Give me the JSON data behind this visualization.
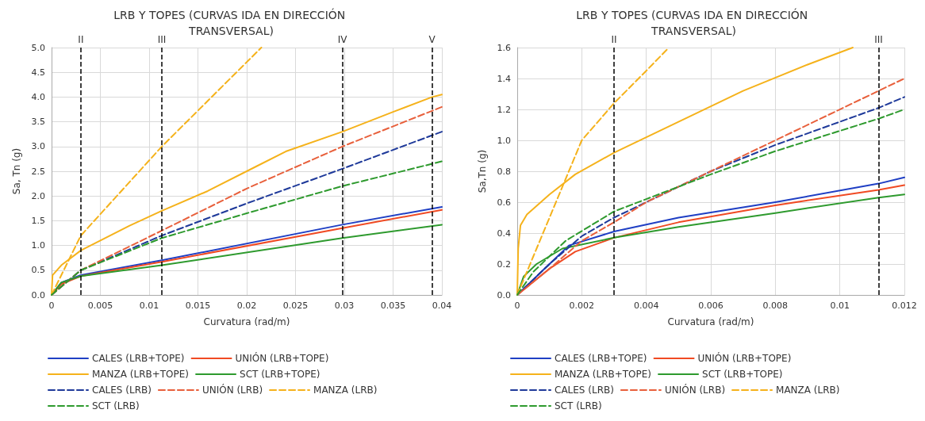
{
  "chart_data": [
    {
      "type": "line",
      "title": "LRB Y TOPES (CURVAS IDA EN DIRECCIÓN TRANSVERSAL)",
      "xlabel": "Curvatura (rad/m)",
      "ylabel": "Sa, Tn (g)",
      "xlim": [
        0,
        0.04
      ],
      "xticks": [
        0,
        0.005,
        0.01,
        0.015,
        0.02,
        0.025,
        0.03,
        0.035,
        0.04
      ],
      "ylim": [
        0,
        5
      ],
      "yticks": [
        {
          "value": 0,
          "label": "0.0"
        },
        {
          "value": 0.5,
          "label": "0.5"
        },
        {
          "value": 1,
          "label": "1.0"
        },
        {
          "value": 1.5,
          "label": "1.5"
        },
        {
          "value": 2,
          "label": "2.0"
        },
        {
          "value": 2.5,
          "label": "2.5"
        },
        {
          "value": 3,
          "label": "3.0"
        },
        {
          "value": 3.5,
          "label": "3.5"
        },
        {
          "value": 4,
          "label": "4.0"
        },
        {
          "value": 4.5,
          "label": "4.5"
        },
        {
          "value": 5,
          "label": "5.0"
        }
      ],
      "grid": true,
      "legend": "bottom",
      "marker": "none",
      "ref_lines": [
        {
          "axis": "x",
          "value": 0.003,
          "label": "II",
          "color": "#000000",
          "line_style": "dashed"
        },
        {
          "axis": "x",
          "value": 0.0113,
          "label": "III",
          "color": "#000000",
          "line_style": "dashed"
        },
        {
          "axis": "x",
          "value": 0.0298,
          "label": "IV",
          "color": "#000000",
          "line_style": "dashed"
        },
        {
          "axis": "x",
          "value": 0.039,
          "label": "V",
          "color": "#000000",
          "line_style": "dashed"
        }
      ],
      "series": [
        {
          "name": "CALES (LRB+TOPE)",
          "color": "#1f3fc4",
          "line_style": "solid",
          "x": [
            0,
            0.001,
            0.003,
            0.0113,
            0.0298,
            0.04
          ],
          "values": [
            0,
            0.25,
            0.4,
            0.7,
            1.42,
            1.78
          ]
        },
        {
          "name": "UNIÓN (LRB+TOPE)",
          "color": "#f04a23",
          "line_style": "solid",
          "x": [
            0,
            0.001,
            0.003,
            0.0113,
            0.0298,
            0.04
          ],
          "values": [
            0,
            0.22,
            0.38,
            0.67,
            1.35,
            1.72
          ]
        },
        {
          "name": "MANZA (LRB+TOPE)",
          "color": "#f5b21b",
          "line_style": "solid",
          "x": [
            0,
            0.0001,
            0.001,
            0.003,
            0.006,
            0.008,
            0.0113,
            0.016,
            0.021,
            0.024,
            0.0298,
            0.035,
            0.039,
            0.04
          ],
          "values": [
            0,
            0.4,
            0.6,
            0.9,
            1.2,
            1.4,
            1.7,
            2.1,
            2.6,
            2.9,
            3.3,
            3.7,
            4.0,
            4.05
          ]
        },
        {
          "name": "SCT (LRB+TOPE)",
          "color": "#2e9a2e",
          "line_style": "solid",
          "x": [
            0,
            0.001,
            0.003,
            0.0113,
            0.0298,
            0.04
          ],
          "values": [
            0,
            0.25,
            0.38,
            0.6,
            1.15,
            1.42
          ]
        },
        {
          "name": "CALES (LRB)",
          "color": "#1f3a9a",
          "line_style": "dashed",
          "x": [
            0,
            0.003,
            0.0113,
            0.02,
            0.0298,
            0.04
          ],
          "values": [
            0,
            0.5,
            1.2,
            1.85,
            2.55,
            3.3
          ]
        },
        {
          "name": "UNIÓN (LRB)",
          "color": "#e8603c",
          "line_style": "dashed",
          "x": [
            0,
            0.003,
            0.0113,
            0.02,
            0.0298,
            0.04
          ],
          "values": [
            0,
            0.5,
            1.3,
            2.15,
            3.0,
            3.8
          ]
        },
        {
          "name": "MANZA (LRB)",
          "color": "#f5b21b",
          "line_style": "dashed",
          "x": [
            0,
            0.003,
            0.0113,
            0.0215
          ],
          "values": [
            0,
            1.2,
            3.0,
            5.0
          ]
        },
        {
          "name": "SCT (LRB)",
          "color": "#2e9a2e",
          "line_style": "dashed",
          "x": [
            0,
            0.003,
            0.0113,
            0.02,
            0.0298,
            0.04
          ],
          "values": [
            0,
            0.5,
            1.15,
            1.65,
            2.2,
            2.7
          ]
        }
      ]
    },
    {
      "type": "line",
      "title": "LRB Y TOPES (CURVAS IDA EN DIRECCIÓN TRANSVERSAL)",
      "xlabel": "Curvatura (rad/m)",
      "ylabel": "Sa,Tn (g)",
      "xlim": [
        0,
        0.012
      ],
      "xticks": [
        0,
        0.002,
        0.004,
        0.006,
        0.008,
        0.01,
        0.012
      ],
      "ylim": [
        0,
        1.6
      ],
      "yticks": [
        {
          "value": 0,
          "label": "0.0"
        },
        {
          "value": 0.2,
          "label": "0.2"
        },
        {
          "value": 0.4,
          "label": "0.4"
        },
        {
          "value": 0.6,
          "label": "0.6"
        },
        {
          "value": 0.8,
          "label": "0.8"
        },
        {
          "value": 1,
          "label": "1.0"
        },
        {
          "value": 1.2,
          "label": "1.2"
        },
        {
          "value": 1.4,
          "label": "1.4"
        },
        {
          "value": 1.6,
          "label": "1.6"
        }
      ],
      "grid": true,
      "legend": "bottom",
      "marker": "none",
      "ref_lines": [
        {
          "axis": "x",
          "value": 0.003,
          "label": "II",
          "color": "#000000",
          "line_style": "dashed"
        },
        {
          "axis": "x",
          "value": 0.0112,
          "label": "III",
          "color": "#000000",
          "line_style": "dashed"
        }
      ],
      "series": [
        {
          "name": "CALES (LRB+TOPE)",
          "color": "#1f3fc4",
          "line_style": "solid",
          "x": [
            0,
            0.001,
            0.0016,
            0.003,
            0.005,
            0.008,
            0.0112,
            0.012
          ],
          "values": [
            0,
            0.2,
            0.32,
            0.41,
            0.5,
            0.6,
            0.72,
            0.76
          ]
        },
        {
          "name": "UNIÓN (LRB+TOPE)",
          "color": "#f04a23",
          "line_style": "solid",
          "x": [
            0,
            0.001,
            0.0018,
            0.003,
            0.005,
            0.008,
            0.0112,
            0.012
          ],
          "values": [
            0,
            0.17,
            0.28,
            0.37,
            0.47,
            0.58,
            0.68,
            0.71
          ]
        },
        {
          "name": "MANZA (LRB+TOPE)",
          "color": "#f5b21b",
          "line_style": "solid",
          "x": [
            0,
            3e-05,
            0.0001,
            0.0003,
            0.001,
            0.0018,
            0.003,
            0.005,
            0.007,
            0.009,
            0.0104
          ],
          "values": [
            0,
            0.3,
            0.45,
            0.52,
            0.65,
            0.78,
            0.92,
            1.12,
            1.32,
            1.49,
            1.6
          ]
        },
        {
          "name": "SCT (LRB+TOPE)",
          "color": "#2e9a2e",
          "line_style": "solid",
          "x": [
            0,
            0.0002,
            0.0006,
            0.0014,
            0.003,
            0.005,
            0.008,
            0.0112,
            0.012
          ],
          "values": [
            0,
            0.12,
            0.2,
            0.3,
            0.37,
            0.44,
            0.53,
            0.63,
            0.65
          ]
        },
        {
          "name": "CALES (LRB)",
          "color": "#1f3a9a",
          "line_style": "dashed",
          "x": [
            0,
            0.001,
            0.002,
            0.003,
            0.004,
            0.006,
            0.008,
            0.0112,
            0.012
          ],
          "values": [
            0,
            0.2,
            0.38,
            0.5,
            0.6,
            0.8,
            0.97,
            1.21,
            1.28
          ]
        },
        {
          "name": "UNIÓN (LRB)",
          "color": "#e8603c",
          "line_style": "dashed",
          "x": [
            0,
            0.001,
            0.002,
            0.003,
            0.004,
            0.006,
            0.008,
            0.0112,
            0.012
          ],
          "values": [
            0,
            0.17,
            0.35,
            0.47,
            0.6,
            0.8,
            1.0,
            1.32,
            1.4
          ]
        },
        {
          "name": "MANZA (LRB)",
          "color": "#f5b21b",
          "line_style": "dashed",
          "x": [
            0,
            0.0005,
            0.001,
            0.0015,
            0.002,
            0.003,
            0.004,
            0.0047
          ],
          "values": [
            0,
            0.25,
            0.5,
            0.75,
            1.0,
            1.24,
            1.45,
            1.6
          ]
        },
        {
          "name": "SCT (LRB)",
          "color": "#2e9a2e",
          "line_style": "dashed",
          "x": [
            0,
            0.0005,
            0.0015,
            0.003,
            0.004,
            0.006,
            0.008,
            0.0112,
            0.012
          ],
          "values": [
            0,
            0.15,
            0.35,
            0.54,
            0.62,
            0.78,
            0.93,
            1.14,
            1.2
          ]
        }
      ]
    }
  ]
}
